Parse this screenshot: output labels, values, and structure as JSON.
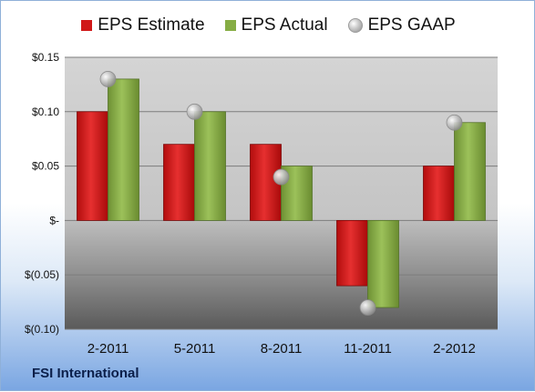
{
  "chart_data": {
    "type": "bar",
    "title": "",
    "xlabel": "",
    "ylabel": "",
    "categories": [
      "2-2011",
      "5-2011",
      "8-2011",
      "11-2011",
      "2-2012"
    ],
    "series": [
      {
        "name": "EPS Estimate",
        "kind": "bar",
        "color": "#d01818",
        "values": [
          0.1,
          0.07,
          0.07,
          -0.06,
          0.05
        ]
      },
      {
        "name": "EPS Actual",
        "kind": "bar",
        "color": "#86ad44",
        "values": [
          0.13,
          0.1,
          0.05,
          -0.08,
          0.09
        ]
      },
      {
        "name": "EPS GAAP",
        "kind": "marker",
        "color": "#b8b8b8",
        "values": [
          0.13,
          0.1,
          0.04,
          -0.08,
          0.09
        ]
      }
    ],
    "ylim": [
      -0.1,
      0.15
    ],
    "yticks": [
      {
        "value": 0.15,
        "label": "$0.15"
      },
      {
        "value": 0.1,
        "label": "$0.10"
      },
      {
        "value": 0.05,
        "label": "$0.05"
      },
      {
        "value": 0,
        "label": "$-"
      },
      {
        "value": -0.05,
        "label": "$(0.05)"
      },
      {
        "value": -0.1,
        "label": "$(0.10)"
      }
    ],
    "grid": true,
    "legend_position": "top"
  },
  "footer": {
    "company": "FSI International"
  }
}
